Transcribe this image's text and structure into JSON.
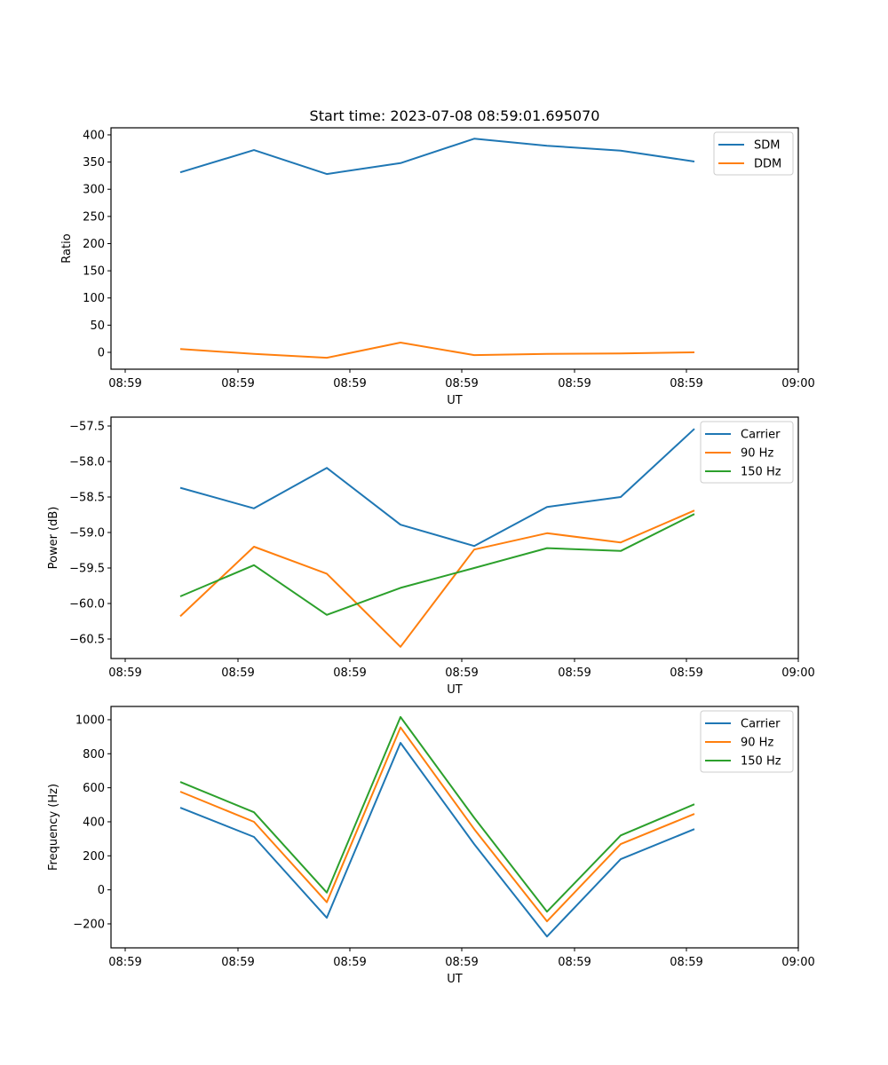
{
  "figure": {
    "title": "Start time: 2023-07-08 08:59:01.695070"
  },
  "chart_data": [
    {
      "type": "line",
      "title": "Start time: 2023-07-08 08:59:01.695070",
      "xlabel": "UT",
      "ylabel": "Ratio",
      "x_ticks": [
        "08:59",
        "08:59",
        "08:59",
        "08:59",
        "08:59",
        "08:59",
        "09:00"
      ],
      "x_index_range": [
        -0.75,
        8.6
      ],
      "x": [
        0,
        1,
        2,
        3,
        4,
        5,
        6,
        7
      ],
      "y_ticks": [
        0,
        50,
        100,
        150,
        200,
        250,
        300,
        350,
        400
      ],
      "ylim": [
        -31,
        413
      ],
      "grid": false,
      "legend": "top-right",
      "series": [
        {
          "name": "SDM",
          "color": "#1f77b4",
          "values": [
            331,
            372,
            328,
            348,
            393,
            380,
            371,
            351
          ]
        },
        {
          "name": "DDM",
          "color": "#ff7f0e",
          "values": [
            6,
            -3,
            -10,
            18,
            -5,
            -3,
            -2,
            0
          ]
        }
      ]
    },
    {
      "type": "line",
      "title": "",
      "xlabel": "UT",
      "ylabel": "Power (dB)",
      "x_ticks": [
        "08:59",
        "08:59",
        "08:59",
        "08:59",
        "08:59",
        "08:59",
        "09:00"
      ],
      "x": [
        0,
        1,
        2,
        3,
        4,
        5,
        6,
        7
      ],
      "y_ticks": [
        -60.5,
        -60.0,
        -59.5,
        -59.0,
        -58.5,
        -58.0,
        -57.5
      ],
      "y_tick_labels": [
        "−60.5",
        "−60.0",
        "−59.5",
        "−59.0",
        "−58.5",
        "−58.0",
        "−57.5"
      ],
      "ylim": [
        -60.775,
        -57.375
      ],
      "grid": false,
      "legend": "top-right",
      "series": [
        {
          "name": "Carrier",
          "color": "#1f77b4",
          "values": [
            -58.37,
            -58.66,
            -58.09,
            -58.89,
            -59.19,
            -58.64,
            -58.5,
            -57.54
          ]
        },
        {
          "name": "90 Hz",
          "color": "#ff7f0e",
          "values": [
            -60.18,
            -59.2,
            -59.58,
            -60.61,
            -59.24,
            -59.01,
            -59.14,
            -58.69
          ]
        },
        {
          "name": "150 Hz",
          "color": "#2ca02c",
          "values": [
            -59.9,
            -59.46,
            -60.16,
            -59.78,
            -59.5,
            -59.22,
            -59.26,
            -58.74
          ]
        }
      ]
    },
    {
      "type": "line",
      "title": "",
      "xlabel": "UT",
      "ylabel": "Frequency (Hz)",
      "x_ticks": [
        "08:59",
        "08:59",
        "08:59",
        "08:59",
        "08:59",
        "08:59",
        "09:00"
      ],
      "x": [
        0,
        1,
        2,
        3,
        4,
        5,
        6,
        7
      ],
      "y_ticks": [
        -200,
        0,
        200,
        400,
        600,
        800,
        1000
      ],
      "y_tick_labels": [
        "−200",
        "0",
        "200",
        "400",
        "600",
        "800",
        "1000"
      ],
      "ylim": [
        -341,
        1078
      ],
      "grid": false,
      "legend": "top-right",
      "series": [
        {
          "name": "Carrier",
          "color": "#1f77b4",
          "values": [
            483,
            311,
            -164,
            864,
            269,
            -274,
            180,
            357
          ]
        },
        {
          "name": "90 Hz",
          "color": "#ff7f0e",
          "values": [
            577,
            400,
            -73,
            955,
            357,
            -185,
            269,
            446
          ]
        },
        {
          "name": "150 Hz",
          "color": "#2ca02c",
          "values": [
            634,
            456,
            -16,
            1016,
            424,
            -128,
            320,
            503
          ]
        }
      ]
    }
  ]
}
